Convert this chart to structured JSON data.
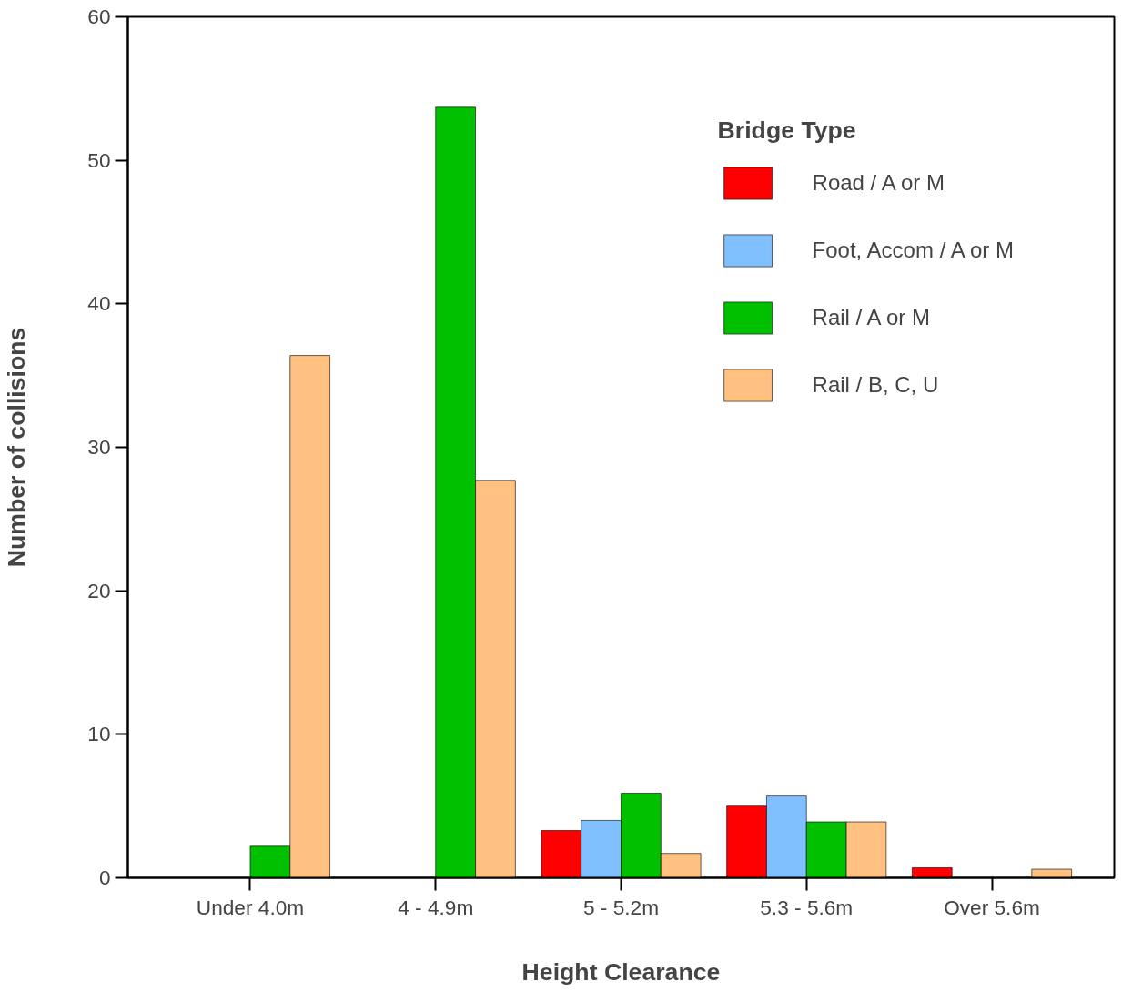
{
  "chart_data": {
    "type": "bar",
    "xlabel": "Height Clearance",
    "ylabel": "Number of collisions",
    "legend_title": "Bridge Type",
    "legend": "top right",
    "grid": false,
    "categories": [
      "Under 4.0m",
      "4 - 4.9m",
      "5 - 5.2m",
      "5.3 - 5.6m",
      "Over 5.6m"
    ],
    "ylim": [
      0,
      60
    ],
    "yticks": [
      0,
      10,
      20,
      30,
      40,
      50,
      60
    ],
    "series": [
      {
        "name": "Road / A or M",
        "color": "#ff0000",
        "values": [
          null,
          null,
          3.3,
          5.0,
          0.7
        ]
      },
      {
        "name": "Foot, Accom / A or M",
        "color": "#80c0ff",
        "values": [
          null,
          null,
          4.0,
          5.7,
          null
        ]
      },
      {
        "name": "Rail / A or M",
        "color": "#00c000",
        "values": [
          2.2,
          53.7,
          5.9,
          3.9,
          null
        ]
      },
      {
        "name": "Rail / B, C, U",
        "color": "#ffc080",
        "values": [
          36.4,
          27.7,
          1.7,
          3.9,
          0.6
        ]
      }
    ]
  }
}
